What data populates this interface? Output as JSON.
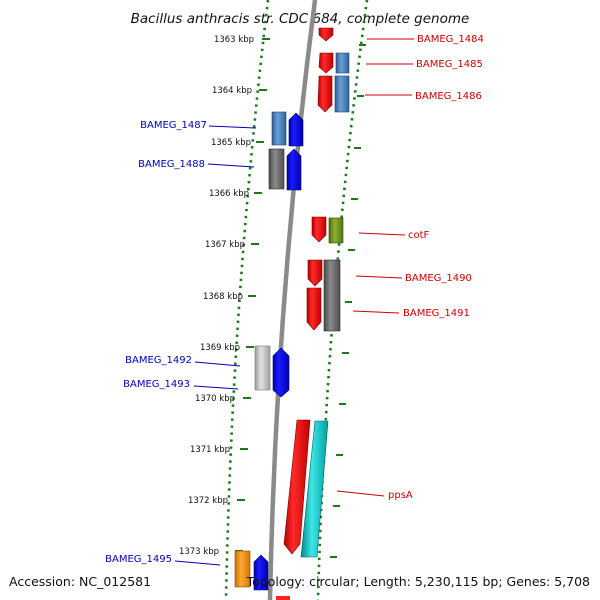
{
  "title": "Bacillus anthracis str. CDC 684, complete genome",
  "footer": {
    "accession": "Accession: NC_012581",
    "info": "Topology: circular; Length: 5,230,115 bp; Genes: 5,708"
  },
  "colors": {
    "forward_label": "#cc0000",
    "reverse_label": "#0000bb",
    "tick": "#1a7a1a",
    "backbone": "#8a8a8a"
  },
  "ticks": [
    "1363 kbp",
    "1364 kbp",
    "1365 kbp",
    "1366 kbp",
    "1367 kbp",
    "1368 kbp",
    "1369 kbp",
    "1370 kbp",
    "1371 kbp",
    "1372 kbp",
    "1373 kbp"
  ],
  "labels": [
    {
      "text": "BAMEG_1484",
      "side": "right"
    },
    {
      "text": "BAMEG_1485",
      "side": "right"
    },
    {
      "text": "BAMEG_1486",
      "side": "right"
    },
    {
      "text": "BAMEG_1487",
      "side": "left"
    },
    {
      "text": "BAMEG_1488",
      "side": "left"
    },
    {
      "text": "cotF",
      "side": "right"
    },
    {
      "text": "BAMEG_1490",
      "side": "right"
    },
    {
      "text": "BAMEG_1491",
      "side": "right"
    },
    {
      "text": "BAMEG_1492",
      "side": "left"
    },
    {
      "text": "BAMEG_1493",
      "side": "left"
    },
    {
      "text": "ppsA",
      "side": "right"
    },
    {
      "text": "BAMEG_1495",
      "side": "left"
    }
  ]
}
